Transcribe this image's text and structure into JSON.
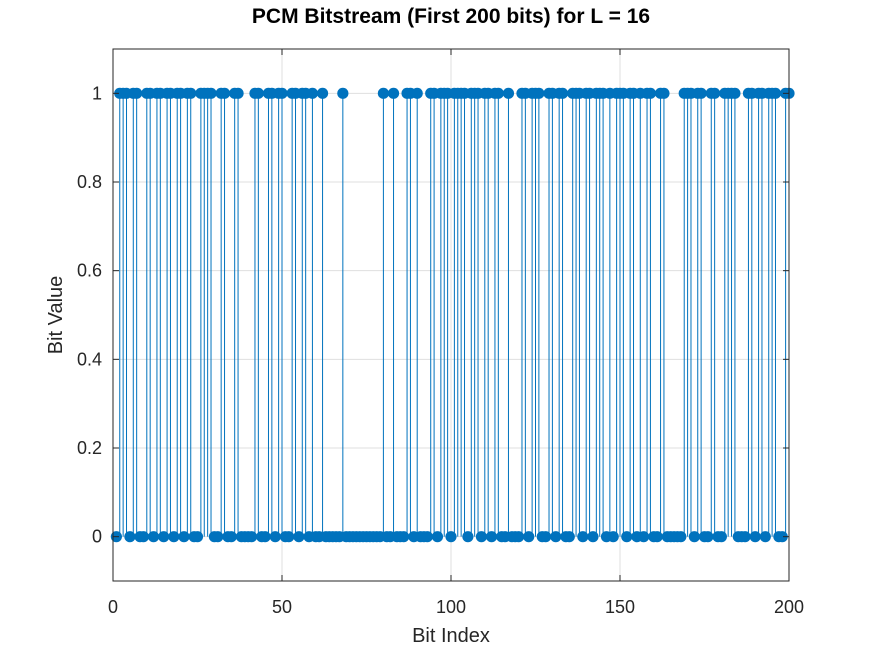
{
  "chart_data": {
    "type": "stem",
    "title": "PCM Bitstream (First 200 bits) for L = 16",
    "xlabel": "Bit Index",
    "ylabel": "Bit Value",
    "xlim": [
      0,
      200
    ],
    "ylim": [
      -0.1,
      1.1
    ],
    "grid": true,
    "xticks": [
      0,
      50,
      100,
      150,
      200
    ],
    "xtick_labels": [
      "0",
      "50",
      "100",
      "150",
      "200"
    ],
    "yticks": [
      0,
      0.2,
      0.4,
      0.6,
      0.8,
      1
    ],
    "ytick_labels": [
      "0",
      "0.2",
      "0.4",
      "0.6",
      "0.8",
      "1"
    ],
    "color": "#0072BD",
    "series": [
      {
        "x_start": 1,
        "values": [
          0,
          1,
          1,
          1,
          0,
          1,
          1,
          0,
          0,
          1,
          1,
          0,
          1,
          1,
          0,
          1,
          1,
          0,
          1,
          1,
          0,
          1,
          1,
          0,
          0,
          1,
          1,
          1,
          1,
          0,
          0,
          1,
          1,
          0,
          0,
          1,
          1,
          0,
          0,
          0,
          0,
          1,
          1,
          0,
          0,
          1,
          1,
          0,
          1,
          1,
          0,
          0,
          1,
          1,
          0,
          1,
          1,
          0,
          1,
          0,
          0,
          1,
          0,
          0,
          0,
          0,
          0,
          1,
          0,
          0,
          0,
          0,
          0,
          0,
          0,
          0,
          0,
          0,
          0,
          1,
          0,
          0,
          1,
          0,
          0,
          0,
          1,
          1,
          0,
          1,
          0,
          0,
          0,
          1,
          1,
          0,
          1,
          1,
          1,
          0,
          1,
          1,
          1,
          1,
          0,
          1,
          1,
          1,
          0,
          1,
          1,
          0,
          1,
          1,
          0,
          0,
          1,
          0,
          0,
          0,
          1,
          1,
          0,
          1,
          1,
          1,
          0,
          0,
          1,
          1,
          0,
          1,
          1,
          0,
          0,
          1,
          1,
          1,
          0,
          1,
          1,
          0,
          1,
          1,
          1,
          0,
          1,
          0,
          1,
          1,
          1,
          0,
          1,
          1,
          0,
          1,
          0,
          1,
          1,
          0,
          0,
          1,
          1,
          0,
          0,
          0,
          0,
          0,
          1,
          1,
          1,
          0,
          1,
          1,
          0,
          0,
          1,
          1,
          0,
          0,
          1,
          1,
          1,
          1,
          0,
          0,
          0,
          1,
          1,
          0,
          1,
          1,
          0,
          1,
          1,
          1,
          0,
          0,
          1,
          1
        ]
      }
    ]
  }
}
